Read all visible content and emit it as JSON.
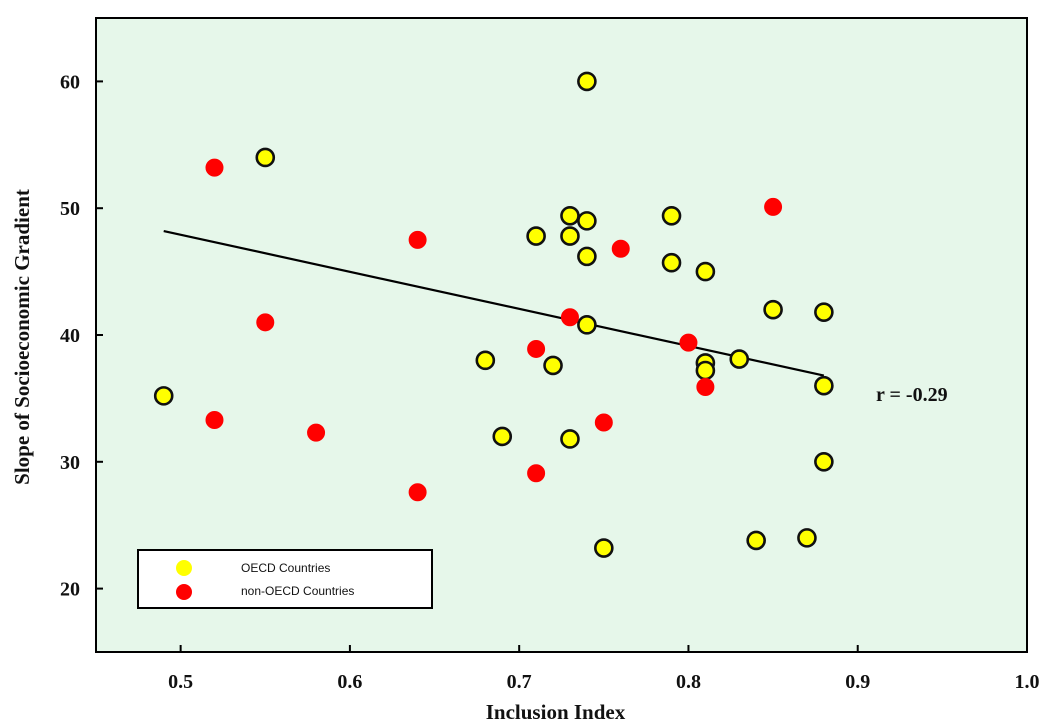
{
  "chart_data": {
    "type": "scatter",
    "title": "",
    "xlabel": "Inclusion Index",
    "ylabel": "Slope of Socioeconomic Gradient",
    "xlim": [
      0.45,
      1.0
    ],
    "ylim": [
      15,
      65
    ],
    "xticks": [
      0.5,
      0.6,
      0.7,
      0.8,
      0.9,
      1.0
    ],
    "xtick_labels": [
      "0.5",
      "0.6",
      "0.7",
      "0.8",
      "0.9",
      "1.0"
    ],
    "yticks": [
      20,
      30,
      40,
      50,
      60
    ],
    "ytick_labels": [
      "20",
      "30",
      "40",
      "50",
      "60"
    ],
    "grid": false,
    "background_color": "#e6f7ea",
    "legend": {
      "placement": "bottom-left",
      "entries": [
        "OECD Countries",
        "non-OECD Countries"
      ]
    },
    "annotation": "r = -0.29",
    "trendline": {
      "x": [
        0.49,
        0.88
      ],
      "y": [
        48.2,
        36.8
      ]
    },
    "series": [
      {
        "name": "OECD Countries",
        "color": "#ffff00",
        "outline": "#111111",
        "points": [
          [
            0.49,
            35.2
          ],
          [
            0.55,
            54.0
          ],
          [
            0.68,
            38.0
          ],
          [
            0.69,
            32.0
          ],
          [
            0.71,
            47.8
          ],
          [
            0.72,
            37.6
          ],
          [
            0.73,
            49.4
          ],
          [
            0.73,
            47.8
          ],
          [
            0.73,
            31.8
          ],
          [
            0.74,
            60.0
          ],
          [
            0.74,
            49.0
          ],
          [
            0.74,
            46.2
          ],
          [
            0.74,
            40.8
          ],
          [
            0.75,
            23.2
          ],
          [
            0.79,
            49.4
          ],
          [
            0.79,
            45.7
          ],
          [
            0.81,
            45.0
          ],
          [
            0.81,
            37.8
          ],
          [
            0.81,
            37.2
          ],
          [
            0.83,
            38.1
          ],
          [
            0.84,
            23.8
          ],
          [
            0.85,
            42.0
          ],
          [
            0.87,
            24.0
          ],
          [
            0.88,
            41.8
          ],
          [
            0.88,
            36.0
          ],
          [
            0.88,
            30.0
          ]
        ]
      },
      {
        "name": "non-OECD Countries",
        "color": "#ff0000",
        "outline": "#ff0000",
        "points": [
          [
            0.52,
            53.2
          ],
          [
            0.52,
            33.3
          ],
          [
            0.55,
            41.0
          ],
          [
            0.58,
            32.3
          ],
          [
            0.64,
            47.5
          ],
          [
            0.64,
            27.6
          ],
          [
            0.71,
            38.9
          ],
          [
            0.71,
            29.1
          ],
          [
            0.73,
            41.4
          ],
          [
            0.75,
            33.1
          ],
          [
            0.76,
            46.8
          ],
          [
            0.8,
            39.4
          ],
          [
            0.81,
            35.9
          ],
          [
            0.85,
            50.1
          ]
        ]
      }
    ]
  }
}
